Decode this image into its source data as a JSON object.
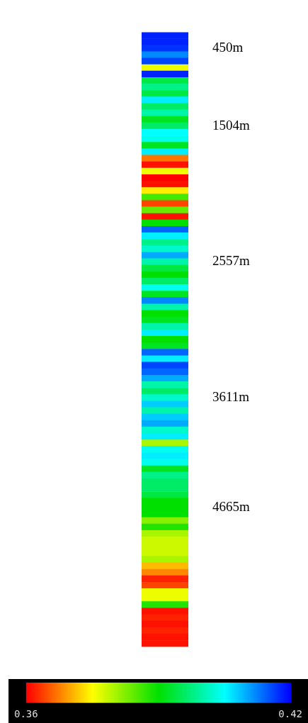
{
  "chart_data": {
    "type": "heatmap",
    "categories": [
      null
    ],
    "y_categories": [
      null,
      null,
      "450m",
      null,
      null,
      null,
      null,
      null,
      null,
      null,
      null,
      null,
      null,
      null,
      "1504m",
      null,
      null,
      null,
      null,
      null,
      null,
      null,
      null,
      null,
      null,
      null,
      null,
      null,
      null,
      null,
      null,
      null,
      null,
      null,
      null,
      "2557m",
      null,
      null,
      null,
      null,
      null,
      null,
      null,
      null,
      null,
      null,
      null,
      null,
      null,
      null,
      null,
      null,
      null,
      null,
      null,
      null,
      "3611m",
      null,
      null,
      null,
      null,
      null,
      null,
      null,
      null,
      null,
      null,
      null,
      null,
      null,
      null,
      null,
      null,
      "4665m",
      null,
      null,
      null,
      null,
      null,
      null,
      null,
      null,
      null,
      null,
      null,
      null,
      null,
      null,
      null,
      null,
      null,
      null,
      null,
      null,
      null
    ],
    "cells": [
      [
        0.418
      ],
      [
        0.418
      ],
      [
        0.417
      ],
      [
        0.412
      ],
      [
        0.416
      ],
      [
        0.376
      ],
      [
        0.418
      ],
      [
        0.394
      ],
      [
        0.398
      ],
      [
        0.394
      ],
      [
        0.406
      ],
      [
        0.396
      ],
      [
        0.4
      ],
      [
        0.392
      ],
      [
        0.396
      ],
      [
        0.405
      ],
      [
        0.404
      ],
      [
        0.392
      ],
      [
        0.406
      ],
      [
        0.367
      ],
      [
        0.361
      ],
      [
        0.376
      ],
      [
        0.36
      ],
      [
        0.361
      ],
      [
        0.374
      ],
      [
        0.386
      ],
      [
        0.364
      ],
      [
        0.384
      ],
      [
        0.361
      ],
      [
        0.39
      ],
      [
        0.414
      ],
      [
        0.406
      ],
      [
        0.398
      ],
      [
        0.402
      ],
      [
        0.41
      ],
      [
        0.4
      ],
      [
        0.394
      ],
      [
        0.39
      ],
      [
        0.396
      ],
      [
        0.404
      ],
      [
        0.392
      ],
      [
        0.412
      ],
      [
        0.4
      ],
      [
        0.39
      ],
      [
        0.392
      ],
      [
        0.4
      ],
      [
        0.406
      ],
      [
        0.39
      ],
      [
        0.392
      ],
      [
        0.414
      ],
      [
        0.406
      ],
      [
        0.416
      ],
      [
        0.414
      ],
      [
        0.41
      ],
      [
        0.4
      ],
      [
        0.396
      ],
      [
        0.402
      ],
      [
        0.408
      ],
      [
        0.4
      ],
      [
        0.408
      ],
      [
        0.41
      ],
      [
        0.402
      ],
      [
        0.406
      ],
      [
        0.38
      ],
      [
        0.404
      ],
      [
        0.406
      ],
      [
        0.404
      ],
      [
        0.392
      ],
      [
        0.398
      ],
      [
        0.396
      ],
      [
        0.396
      ],
      [
        0.394
      ],
      [
        0.39
      ],
      [
        0.39
      ],
      [
        0.39
      ],
      [
        0.382
      ],
      [
        0.388
      ],
      [
        0.38
      ],
      [
        0.378
      ],
      [
        0.378
      ],
      [
        0.378
      ],
      [
        0.38
      ],
      [
        0.371
      ],
      [
        0.368
      ],
      [
        0.362
      ],
      [
        0.364
      ],
      [
        0.376
      ],
      [
        0.376
      ],
      [
        0.388
      ],
      [
        0.361
      ],
      [
        0.362
      ],
      [
        0.361
      ],
      [
        0.362
      ],
      [
        0.361
      ],
      [
        0.361
      ]
    ],
    "clim": [
      0.36,
      0.42
    ],
    "cticks": [
      0.36,
      0.42
    ]
  }
}
